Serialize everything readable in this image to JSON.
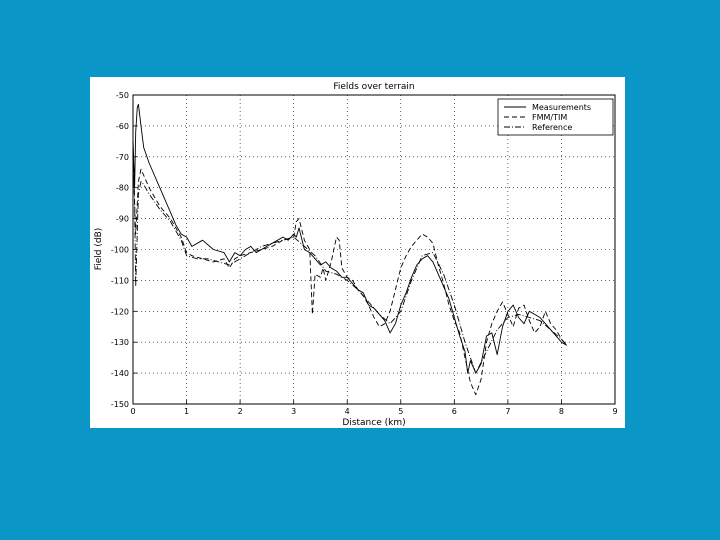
{
  "slide": {
    "background": "#0b96c8"
  },
  "chart_data": {
    "type": "line",
    "title": "Fields over terrain",
    "xlabel": "Distance (km)",
    "ylabel": "Field (dB)",
    "xlim": [
      0,
      9
    ],
    "ylim": [
      -150,
      -50
    ],
    "xticks": [
      0,
      1,
      2,
      3,
      4,
      5,
      6,
      7,
      8,
      9
    ],
    "yticks": [
      -50,
      -60,
      -70,
      -80,
      -90,
      -100,
      -110,
      -120,
      -130,
      -140,
      -150
    ],
    "grid": true,
    "legend_position": "top-right",
    "series": [
      {
        "name": "Measurements",
        "style": "solid",
        "x": [
          0.0,
          0.03,
          0.05,
          0.08,
          0.1,
          0.15,
          0.2,
          0.3,
          0.5,
          0.7,
          0.8,
          0.9,
          1.0,
          1.1,
          1.2,
          1.3,
          1.5,
          1.7,
          1.8,
          1.9,
          2.0,
          2.1,
          2.2,
          2.3,
          2.5,
          2.7,
          2.8,
          2.9,
          3.0,
          3.05,
          3.1,
          3.2,
          3.3,
          3.4,
          3.5,
          3.6,
          3.7,
          3.8,
          3.9,
          4.0,
          4.1,
          4.2,
          4.3,
          4.4,
          4.5,
          4.6,
          4.7,
          4.8,
          4.9,
          5.0,
          5.1,
          5.2,
          5.3,
          5.4,
          5.5,
          5.6,
          5.7,
          5.8,
          5.9,
          6.0,
          6.1,
          6.2,
          6.25,
          6.3,
          6.4,
          6.5,
          6.6,
          6.7,
          6.8,
          6.9,
          7.0,
          7.1,
          7.2,
          7.3,
          7.4,
          7.5,
          7.6,
          7.7,
          7.8,
          7.9,
          8.0,
          8.1
        ],
        "values": [
          -64,
          -80,
          -62,
          -54,
          -53,
          -60,
          -67,
          -72,
          -80,
          -88,
          -92,
          -95,
          -96,
          -99,
          -98,
          -97,
          -100,
          -101,
          -104,
          -101,
          -102,
          -100,
          -99,
          -101,
          -99,
          -97,
          -96,
          -97,
          -95,
          -96,
          -93,
          -100,
          -101,
          -103,
          -105,
          -104,
          -106,
          -107,
          -109,
          -109,
          -111,
          -113,
          -114,
          -118,
          -119,
          -121,
          -123,
          -127,
          -124,
          -118,
          -114,
          -109,
          -105,
          -103,
          -102,
          -104,
          -108,
          -112,
          -116,
          -122,
          -128,
          -133,
          -140,
          -136,
          -140,
          -137,
          -128,
          -127,
          -134,
          -125,
          -120,
          -118,
          -122,
          -124,
          -120,
          -121,
          -122,
          -124,
          -126,
          -128,
          -130,
          -131
        ]
      },
      {
        "name": "FMM/TIM",
        "style": "dashed",
        "x": [
          0.0,
          0.03,
          0.05,
          0.1,
          0.15,
          0.2,
          0.3,
          0.5,
          0.7,
          0.9,
          1.0,
          1.1,
          1.3,
          1.5,
          1.7,
          1.8,
          1.9,
          2.0,
          2.2,
          2.4,
          2.6,
          2.8,
          3.0,
          3.05,
          3.1,
          3.2,
          3.3,
          3.35,
          3.4,
          3.5,
          3.55,
          3.6,
          3.7,
          3.8,
          3.85,
          3.9,
          4.0,
          4.1,
          4.2,
          4.3,
          4.4,
          4.5,
          4.6,
          4.7,
          4.8,
          4.9,
          5.0,
          5.1,
          5.2,
          5.3,
          5.4,
          5.5,
          5.6,
          5.7,
          5.8,
          5.9,
          6.0,
          6.1,
          6.2,
          6.3,
          6.4,
          6.5,
          6.6,
          6.7,
          6.8,
          6.9,
          7.0,
          7.1,
          7.2,
          7.3,
          7.4,
          7.5,
          7.6,
          7.7,
          7.8,
          7.9,
          8.0,
          8.1
        ],
        "values": [
          -68,
          -85,
          -95,
          -78,
          -74,
          -76,
          -80,
          -86,
          -90,
          -96,
          -101,
          -102,
          -103,
          -104,
          -103,
          -106,
          -103,
          -102,
          -101,
          -100,
          -99,
          -97,
          -96,
          -91,
          -90,
          -97,
          -100,
          -121,
          -108,
          -109,
          -106,
          -110,
          -104,
          -96,
          -97,
          -106,
          -109,
          -110,
          -113,
          -115,
          -118,
          -122,
          -125,
          -124,
          -120,
          -113,
          -106,
          -102,
          -99,
          -97,
          -95,
          -96,
          -98,
          -105,
          -111,
          -118,
          -123,
          -127,
          -135,
          -143,
          -147,
          -142,
          -130,
          -124,
          -120,
          -117,
          -121,
          -125,
          -119,
          -118,
          -123,
          -127,
          -125,
          -120,
          -124,
          -126,
          -129,
          -131
        ]
      },
      {
        "name": "Reference",
        "style": "dashdot",
        "x": [
          0.0,
          0.03,
          0.05,
          0.1,
          0.15,
          0.2,
          0.3,
          0.5,
          0.7,
          0.9,
          1.0,
          1.2,
          1.4,
          1.6,
          1.8,
          2.0,
          2.2,
          2.4,
          2.6,
          2.8,
          3.0,
          3.2,
          3.4,
          3.6,
          3.8,
          4.0,
          4.2,
          4.4,
          4.6,
          4.8,
          5.0,
          5.2,
          5.4,
          5.6,
          5.8,
          6.0,
          6.2,
          6.4,
          6.6,
          6.8,
          7.0,
          7.2,
          7.4,
          7.6,
          7.8,
          8.0,
          8.1
        ],
        "values": [
          -66,
          -84,
          -112,
          -82,
          -78,
          -79,
          -82,
          -87,
          -91,
          -97,
          -102,
          -103,
          -103,
          -104,
          -105,
          -103,
          -101,
          -99,
          -98,
          -97,
          -96,
          -99,
          -102,
          -107,
          -108,
          -110,
          -113,
          -117,
          -121,
          -124,
          -120,
          -110,
          -102,
          -101,
          -108,
          -118,
          -130,
          -140,
          -133,
          -126,
          -122,
          -121,
          -122,
          -123,
          -126,
          -129,
          -131
        ]
      }
    ]
  }
}
